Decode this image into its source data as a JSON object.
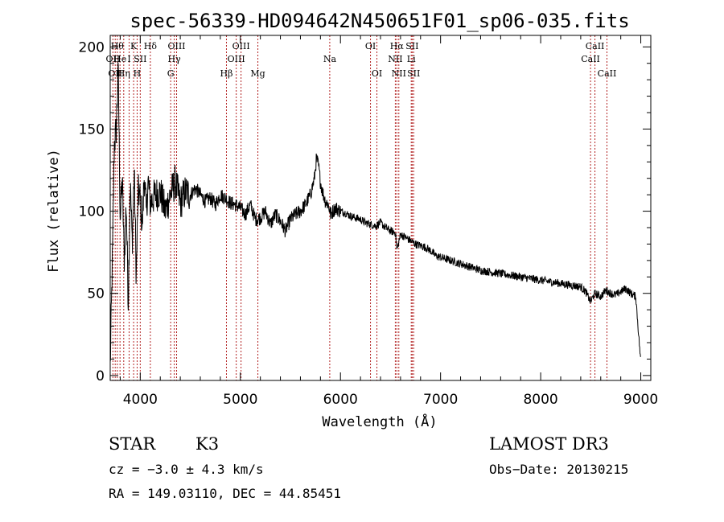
{
  "chart_data": {
    "type": "line",
    "title": "spec-56339-HD094642N450651F01_sp06-035.fits",
    "xlabel": "Wavelength (Å)",
    "ylabel": "Flux (relative)",
    "xlim": [
      3700,
      9100
    ],
    "ylim": [
      -3,
      207
    ],
    "x_ticks": [
      4000,
      5000,
      6000,
      7000,
      8000,
      9000
    ],
    "y_ticks": [
      0,
      50,
      100,
      150,
      200
    ],
    "x_tick_labels": [
      "4000",
      "5000",
      "6000",
      "7000",
      "8000",
      "9000"
    ],
    "y_tick_labels": [
      "0",
      "50",
      "100",
      "150",
      "200"
    ],
    "grid": false,
    "series": [
      {
        "name": "flux",
        "color": "#000000",
        "x": [
          3700,
          3725,
          3740,
          3760,
          3780,
          3800,
          3820,
          3840,
          3860,
          3880,
          3900,
          3920,
          3940,
          3960,
          3980,
          4000,
          4020,
          4040,
          4060,
          4080,
          4100,
          4150,
          4200,
          4250,
          4300,
          4350,
          4400,
          4450,
          4500,
          4550,
          4600,
          4650,
          4700,
          4750,
          4800,
          4850,
          4900,
          4950,
          5000,
          5050,
          5100,
          5150,
          5200,
          5250,
          5300,
          5350,
          5400,
          5450,
          5500,
          5550,
          5600,
          5650,
          5700,
          5740,
          5760,
          5780,
          5800,
          5820,
          5850,
          5880,
          5900,
          5950,
          6000,
          6050,
          6100,
          6150,
          6200,
          6250,
          6300,
          6350,
          6400,
          6450,
          6500,
          6550,
          6563,
          6600,
          6650,
          6700,
          6750,
          6800,
          6850,
          6900,
          6950,
          7000,
          7050,
          7100,
          7150,
          7200,
          7250,
          7300,
          7350,
          7400,
          7500,
          7600,
          7700,
          7800,
          7900,
          8000,
          8100,
          8200,
          8300,
          8400,
          8450,
          8498,
          8542,
          8600,
          8650,
          8700,
          8750,
          8800,
          8850,
          8900,
          8950,
          9000
        ],
        "y": [
          5,
          80,
          140,
          150,
          185,
          95,
          120,
          70,
          105,
          45,
          118,
          80,
          125,
          60,
          112,
          108,
          90,
          122,
          100,
          118,
          105,
          110,
          112,
          100,
          110,
          118,
          105,
          112,
          110,
          114,
          110,
          106,
          108,
          104,
          110,
          108,
          105,
          104,
          102,
          98,
          104,
          95,
          96,
          100,
          92,
          98,
          94,
          88,
          95,
          98,
          100,
          104,
          110,
          120,
          132,
          128,
          118,
          112,
          106,
          104,
          98,
          102,
          100,
          99,
          97,
          96,
          95,
          93,
          92,
          91,
          93,
          90,
          88,
          87,
          76,
          86,
          84,
          82,
          80,
          79,
          78,
          76,
          73,
          72,
          71,
          70,
          69,
          68,
          67,
          66,
          65,
          64,
          63,
          62,
          61,
          60,
          59,
          58,
          57,
          56,
          55,
          54,
          51,
          45,
          50,
          48,
          52,
          50,
          49,
          51,
          53,
          50,
          48,
          8
        ]
      }
    ],
    "lines": [
      {
        "wl": 3727,
        "label": "OII",
        "row": 2
      },
      {
        "wl": 3750,
        "label": "OII",
        "row": 3
      },
      {
        "wl": 3771,
        "label": "Hθ",
        "row": 1
      },
      {
        "wl": 3798,
        "label": "He",
        "row": 2
      },
      {
        "wl": 3835,
        "label": "Hη",
        "row": 3
      },
      {
        "wl": 3889,
        "label": "I",
        "row": 2
      },
      {
        "wl": 3934,
        "label": "K",
        "row": 1
      },
      {
        "wl": 3969,
        "label": "H",
        "row": 3
      },
      {
        "wl": 4000,
        "label": "SII",
        "row": 2
      },
      {
        "wl": 4101,
        "label": "Hδ",
        "row": 1
      },
      {
        "wl": 4304,
        "label": "G",
        "row": 3
      },
      {
        "wl": 4340,
        "label": "Hγ",
        "row": 2
      },
      {
        "wl": 4363,
        "label": "OIII",
        "row": 1
      },
      {
        "wl": 4861,
        "label": "Hβ",
        "row": 3
      },
      {
        "wl": 4959,
        "label": "OIII",
        "row": 2
      },
      {
        "wl": 5007,
        "label": "OIII",
        "row": 1
      },
      {
        "wl": 5175,
        "label": "Mg",
        "row": 3
      },
      {
        "wl": 5893,
        "label": "Na",
        "row": 2
      },
      {
        "wl": 6300,
        "label": "OI",
        "row": 1
      },
      {
        "wl": 6364,
        "label": "OI",
        "row": 3
      },
      {
        "wl": 6548,
        "label": "NII",
        "row": 2
      },
      {
        "wl": 6563,
        "label": "Hα",
        "row": 1
      },
      {
        "wl": 6583,
        "label": "NII",
        "row": 3
      },
      {
        "wl": 6707,
        "label": "Li",
        "row": 2
      },
      {
        "wl": 6716,
        "label": "SII",
        "row": 1
      },
      {
        "wl": 6731,
        "label": "SII",
        "row": 3
      },
      {
        "wl": 8498,
        "label": "CaII",
        "row": 2
      },
      {
        "wl": 8542,
        "label": "CaII",
        "row": 1
      },
      {
        "wl": 8662,
        "label": "CaII",
        "row": 3
      }
    ]
  },
  "info": {
    "object_class": "STAR",
    "subclass": "K3",
    "survey": "LAMOST DR3",
    "redshift": "cz = −3.0 ± 4.3 km/s",
    "obs_date": "Obs−Date: 20130215",
    "coords": "RA = 149.03110, DEC =  44.85451"
  }
}
